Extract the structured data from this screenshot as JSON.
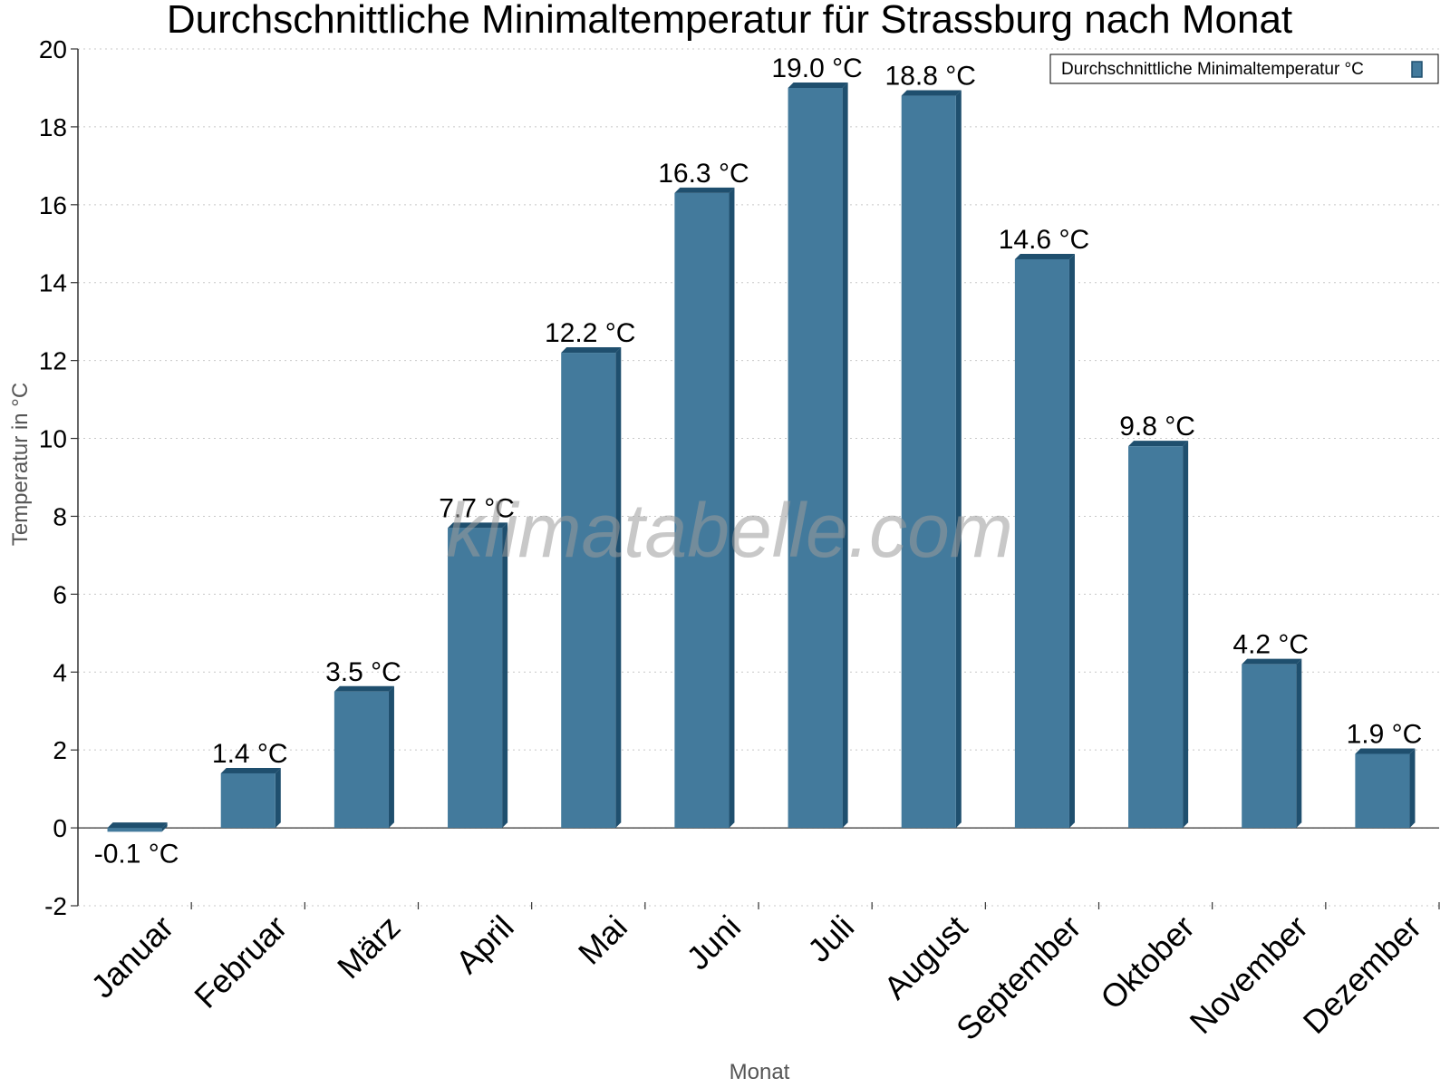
{
  "chart_data": {
    "type": "bar",
    "title": "Durchschnittliche Minimaltemperatur für Strassburg nach Monat",
    "xlabel": "Monat",
    "ylabel": "Temperatur in °C",
    "ylim": [
      -2,
      20
    ],
    "yticks": [
      -2,
      0,
      2,
      4,
      6,
      8,
      10,
      12,
      14,
      16,
      18,
      20
    ],
    "grid": true,
    "legend_position": "top-right",
    "categories": [
      "Januar",
      "Februar",
      "März",
      "April",
      "Mai",
      "Juni",
      "Juli",
      "August",
      "September",
      "Oktober",
      "November",
      "Dezember"
    ],
    "series": [
      {
        "name": "Durchschnittliche Minimaltemperatur °C",
        "values": [
          -0.1,
          1.4,
          3.5,
          7.7,
          12.2,
          16.3,
          19.0,
          18.8,
          14.6,
          9.8,
          4.2,
          1.9
        ],
        "labels": [
          "-0.1 °C",
          "1.4 °C",
          "3.5 °C",
          "7.7 °C",
          "12.2 °C",
          "16.3 °C",
          "19.0 °C",
          "18.8 °C",
          "14.6 °C",
          "9.8 °C",
          "4.2 °C",
          "1.9 °C"
        ],
        "color": "#437a9c",
        "shade_color": "#1f4f6e"
      }
    ],
    "watermark": "klimatabelle.com"
  }
}
